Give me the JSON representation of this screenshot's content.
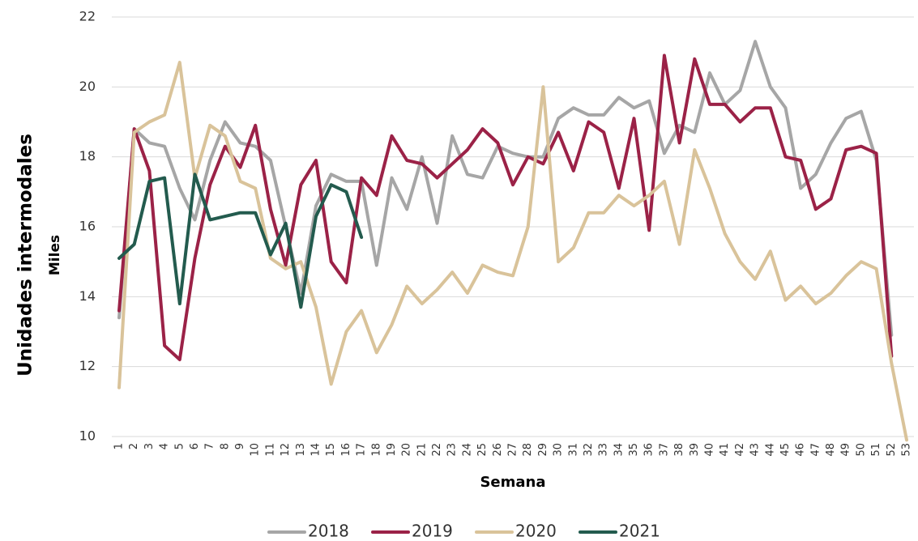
{
  "chart_data": {
    "type": "line",
    "y_label": "Unidades intermodales",
    "y_unit_label": "Miles",
    "x_label": "Semana",
    "categories": [
      "1",
      "2",
      "3",
      "4",
      "5",
      "6",
      "7",
      "8",
      "9",
      "10",
      "11",
      "12",
      "13",
      "14",
      "15",
      "16",
      "17",
      "18",
      "19",
      "20",
      "21",
      "22",
      "23",
      "24",
      "25",
      "26",
      "27",
      "28",
      "29",
      "30",
      "31",
      "32",
      "33",
      "34",
      "35",
      "36",
      "37",
      "38",
      "39",
      "40",
      "41",
      "42",
      "43",
      "44",
      "45",
      "46",
      "47",
      "48",
      "49",
      "50",
      "51",
      "52",
      "53"
    ],
    "ylim": [
      10,
      22
    ],
    "yticks": [
      10,
      12,
      14,
      16,
      18,
      20,
      22
    ],
    "grid": true,
    "legend": "bottom",
    "series": [
      {
        "name": "2018",
        "color": "#a6a6a6",
        "values": [
          13.4,
          18.8,
          18.4,
          18.3,
          17.1,
          16.2,
          17.9,
          19.0,
          18.4,
          18.3,
          17.9,
          16.0,
          14.1,
          16.6,
          17.5,
          17.3,
          17.3,
          14.9,
          17.4,
          16.5,
          18.0,
          16.1,
          18.6,
          17.5,
          17.4,
          18.3,
          18.1,
          18.0,
          18.0,
          19.1,
          19.4,
          19.2,
          19.2,
          19.7,
          19.4,
          19.6,
          18.1,
          18.9,
          18.7,
          20.4,
          19.5,
          19.9,
          21.3,
          20.0,
          19.4,
          17.1,
          17.5,
          18.4,
          19.1,
          19.3,
          17.9,
          12.9,
          null
        ]
      },
      {
        "name": "2019",
        "color": "#9b2247",
        "values": [
          13.6,
          18.8,
          17.6,
          12.6,
          12.2,
          15.1,
          17.2,
          18.3,
          17.7,
          18.9,
          16.5,
          14.9,
          17.2,
          17.9,
          15.0,
          14.4,
          17.4,
          16.9,
          18.6,
          17.9,
          17.8,
          17.4,
          17.8,
          18.2,
          18.8,
          18.4,
          17.2,
          18.0,
          17.8,
          18.7,
          17.6,
          19.0,
          18.7,
          17.1,
          19.1,
          15.9,
          20.9,
          18.4,
          20.8,
          19.5,
          19.5,
          19.0,
          19.4,
          19.4,
          18.0,
          17.9,
          16.5,
          16.8,
          18.2,
          18.3,
          18.1,
          12.3,
          null
        ]
      },
      {
        "name": "2020",
        "color": "#d9c39a",
        "values": [
          11.4,
          18.7,
          19.0,
          19.2,
          20.7,
          17.4,
          18.9,
          18.6,
          17.3,
          17.1,
          15.1,
          14.8,
          15.0,
          13.7,
          11.5,
          13.0,
          13.6,
          12.4,
          13.2,
          14.3,
          13.8,
          14.2,
          14.7,
          14.1,
          14.9,
          14.7,
          14.6,
          16.0,
          20.0,
          15.0,
          15.4,
          16.4,
          16.4,
          16.9,
          16.6,
          16.9,
          17.3,
          15.5,
          18.2,
          17.1,
          15.8,
          15.0,
          14.5,
          15.3,
          13.9,
          14.3,
          13.8,
          14.1,
          14.6,
          15.0,
          14.8,
          12.1,
          9.9
        ]
      },
      {
        "name": "2021",
        "color": "#235b4e",
        "values": [
          15.1,
          15.5,
          17.3,
          17.4,
          13.8,
          17.5,
          16.2,
          16.3,
          16.4,
          16.4,
          15.2,
          16.1,
          13.7,
          16.3,
          17.2,
          17.0,
          15.7,
          null,
          null,
          null,
          null,
          null,
          null,
          null,
          null,
          null,
          null,
          null,
          null,
          null,
          null,
          null,
          null,
          null,
          null,
          null,
          null,
          null,
          null,
          null,
          null,
          null,
          null,
          null,
          null,
          null,
          null,
          null,
          null,
          null,
          null,
          null,
          null
        ]
      }
    ]
  }
}
